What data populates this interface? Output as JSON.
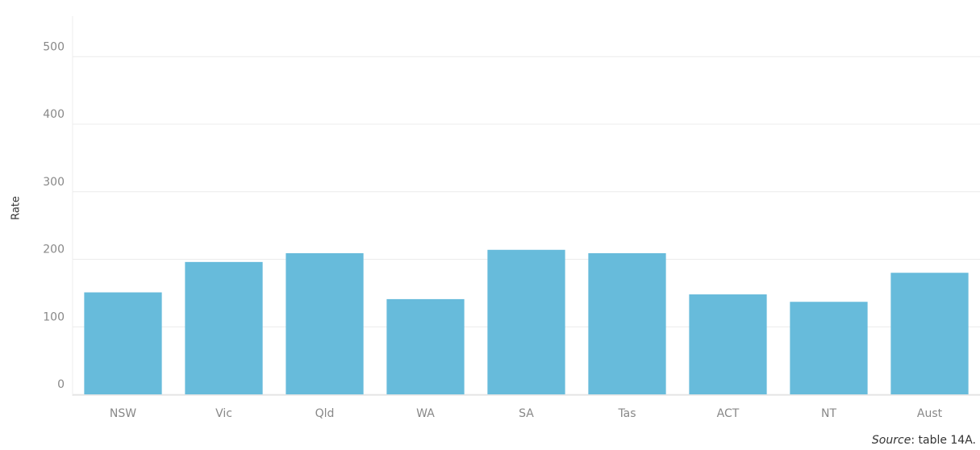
{
  "chart_data": {
    "type": "bar",
    "y_label": "Rate",
    "categories": [
      "NSW",
      "Vic",
      "Qld",
      "WA",
      "SA",
      "Tas",
      "ACT",
      "NT",
      "Aust"
    ],
    "values": [
      151,
      196,
      209,
      141,
      214,
      209,
      148,
      137,
      180
    ],
    "color": "#67bbdb",
    "ylim": [
      0,
      560
    ],
    "yticks": [
      0,
      100,
      200,
      300,
      400,
      500
    ],
    "grid": true,
    "source_label": "Source",
    "source_text": ": table 14A."
  }
}
